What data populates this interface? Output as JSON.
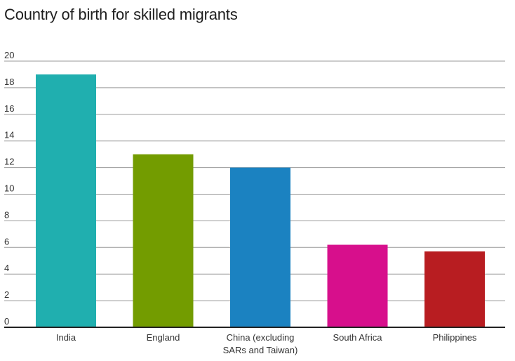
{
  "chart_data": {
    "type": "bar",
    "title": "Country of birth for skilled migrants",
    "xlabel": "",
    "ylabel": "",
    "categories": [
      "India",
      "England",
      "China (excluding SARs and Taiwan)",
      "South Africa",
      "Philippines"
    ],
    "category_lines": [
      [
        "India"
      ],
      [
        "England"
      ],
      [
        "China (excluding",
        "SARs and Taiwan)"
      ],
      [
        "South Africa"
      ],
      [
        "Philippines"
      ]
    ],
    "values": [
      19,
      13,
      12,
      6.2,
      5.7
    ],
    "colors": [
      "#20afaf",
      "#739c00",
      "#1b82c1",
      "#d70f8c",
      "#b81d21"
    ],
    "ylim": [
      0,
      20
    ],
    "yticks": [
      0,
      2,
      4,
      6,
      8,
      10,
      12,
      14,
      16,
      18,
      20
    ],
    "grid": true,
    "legend": "none"
  }
}
